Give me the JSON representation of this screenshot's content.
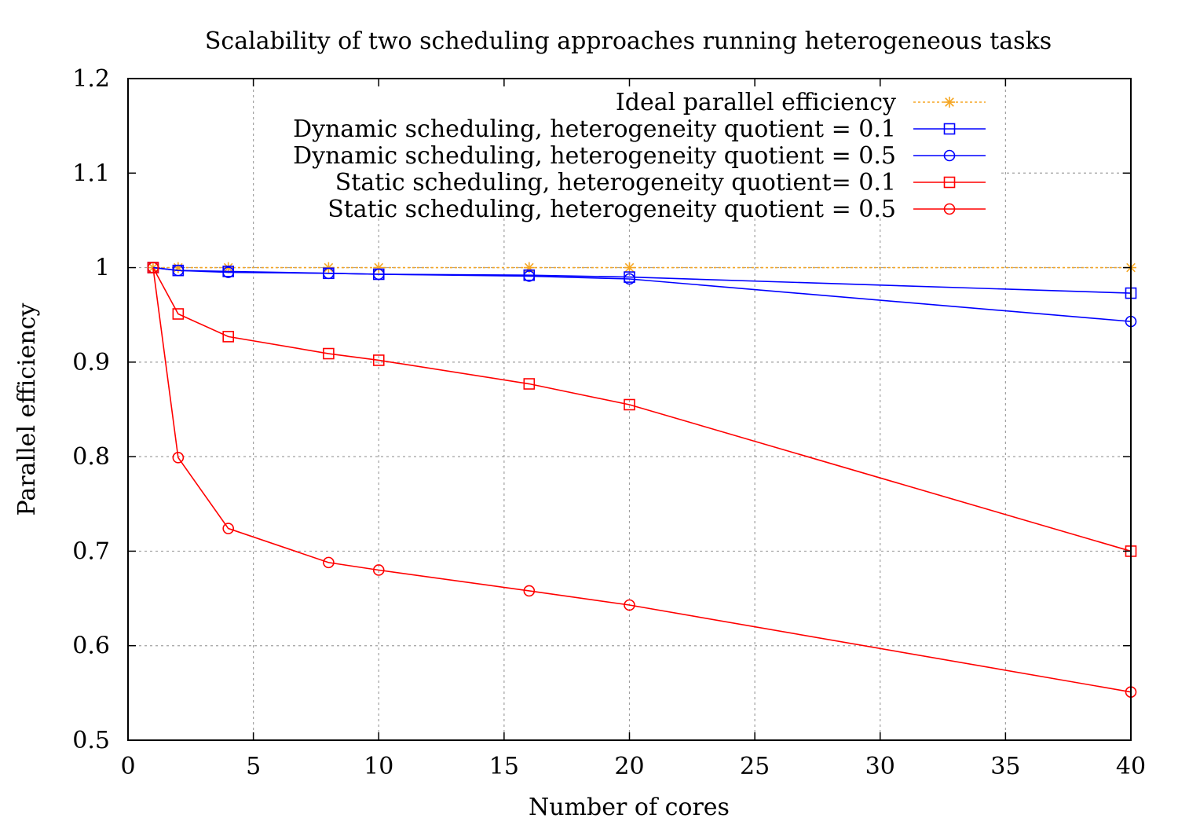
{
  "chart_data": {
    "type": "line",
    "title": "Scalability of two scheduling approaches running heterogeneous tasks",
    "xlabel": "Number of cores",
    "ylabel": "Parallel efficiency",
    "xlim": [
      0,
      40
    ],
    "ylim": [
      0.5,
      1.2
    ],
    "xticks": [
      0,
      5,
      10,
      15,
      20,
      25,
      30,
      35,
      40
    ],
    "yticks": [
      0.5,
      0.6,
      0.7,
      0.8,
      0.9,
      1,
      1.1,
      1.2
    ],
    "ytick_labels": [
      "0.5",
      "0.6",
      "0.7",
      "0.8",
      "0.9",
      "1",
      "1.1",
      "1.2"
    ],
    "grid": true,
    "legend_position": "top-right",
    "series": [
      {
        "name": "Ideal parallel efficiency",
        "color": "#f5a623",
        "marker": "star",
        "dashed": true,
        "x": [
          1,
          2,
          4,
          8,
          10,
          16,
          20,
          40
        ],
        "y": [
          1,
          1,
          1,
          1,
          1,
          1,
          1,
          1
        ]
      },
      {
        "name": "Dynamic scheduling, heterogeneity quotient = 0.1",
        "color": "#0000ff",
        "marker": "square",
        "dashed": false,
        "x": [
          1,
          2,
          4,
          8,
          10,
          16,
          20,
          40
        ],
        "y": [
          1,
          0.997,
          0.996,
          0.994,
          0.993,
          0.992,
          0.99,
          0.973
        ]
      },
      {
        "name": "Dynamic scheduling, heterogeneity quotient = 0.5",
        "color": "#0000ff",
        "marker": "circle",
        "dashed": false,
        "x": [
          1,
          2,
          4,
          8,
          10,
          16,
          20,
          40
        ],
        "y": [
          1,
          0.997,
          0.995,
          0.994,
          0.993,
          0.991,
          0.988,
          0.943
        ]
      },
      {
        "name": "Static scheduling, heterogeneity quotient= 0.1",
        "color": "#ff0000",
        "marker": "square",
        "dashed": false,
        "x": [
          1,
          2,
          4,
          8,
          10,
          16,
          20,
          40
        ],
        "y": [
          1,
          0.951,
          0.927,
          0.909,
          0.902,
          0.877,
          0.855,
          0.7
        ]
      },
      {
        "name": "Static scheduling, heterogeneity quotient = 0.5",
        "color": "#ff0000",
        "marker": "circle",
        "dashed": false,
        "x": [
          1,
          2,
          4,
          8,
          10,
          16,
          20,
          40
        ],
        "y": [
          1,
          0.799,
          0.724,
          0.688,
          0.68,
          0.658,
          0.643,
          0.551
        ]
      }
    ]
  }
}
